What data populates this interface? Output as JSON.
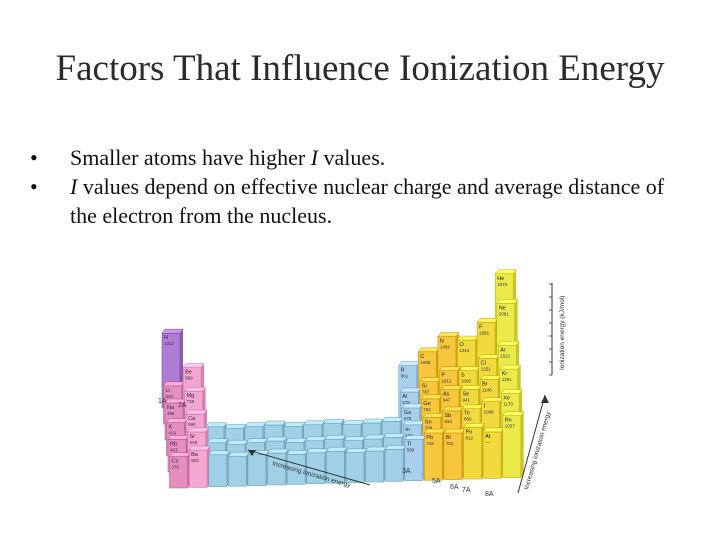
{
  "slide": {
    "title": "Factors That Influence Ionization Energy",
    "bullets": [
      {
        "prefix": "",
        "italic": "",
        "text": "Smaller atoms have higher ",
        "italic2": "I",
        "suffix": " values."
      },
      {
        "prefix": "",
        "italic": "I",
        "text": " values depend on effective nuclear charge and average distance of the electron from the nucleus.",
        "italic2": "",
        "suffix": ""
      }
    ]
  },
  "figure": {
    "axis_right_label": "Ionization energy (kJ/mol)",
    "arrow_bottom_label": "Increasing ionization energy",
    "arrow_right_label": "Increasing ionization energy",
    "group_labels": [
      "1A",
      "2A",
      "3A",
      "5A",
      "6A",
      "7A",
      "8A"
    ],
    "elements": [
      {
        "sym": "H",
        "val": "1312"
      },
      {
        "sym": "He",
        "val": "2372"
      },
      {
        "sym": "Li",
        "val": "520"
      },
      {
        "sym": "Be",
        "val": "899"
      },
      {
        "sym": "Na",
        "val": "496"
      },
      {
        "sym": "Mg",
        "val": "738"
      },
      {
        "sym": "K",
        "val": "419"
      },
      {
        "sym": "Ca",
        "val": "590"
      },
      {
        "sym": "Rb",
        "val": "403"
      },
      {
        "sym": "Sr",
        "val": "549"
      },
      {
        "sym": "Cs",
        "val": "376"
      },
      {
        "sym": "Ba",
        "val": "503"
      },
      {
        "sym": "B",
        "val": "801"
      },
      {
        "sym": "C",
        "val": "1086"
      },
      {
        "sym": "N",
        "val": "1402"
      },
      {
        "sym": "O",
        "val": "1314"
      },
      {
        "sym": "F",
        "val": "1681"
      },
      {
        "sym": "Ne",
        "val": "2081"
      },
      {
        "sym": "Al",
        "val": "578"
      },
      {
        "sym": "Si",
        "val": "787"
      },
      {
        "sym": "P",
        "val": "1012"
      },
      {
        "sym": "S",
        "val": "1000"
      },
      {
        "sym": "Cl",
        "val": "1251"
      },
      {
        "sym": "Ar",
        "val": "1521"
      },
      {
        "sym": "Ga",
        "val": "579"
      },
      {
        "sym": "Ge",
        "val": "762"
      },
      {
        "sym": "As",
        "val": "947"
      },
      {
        "sym": "Se",
        "val": "941"
      },
      {
        "sym": "Br",
        "val": "1140"
      },
      {
        "sym": "Kr",
        "val": "1351"
      },
      {
        "sym": "In",
        "val": "558"
      },
      {
        "sym": "Sn",
        "val": "709"
      },
      {
        "sym": "Sb",
        "val": "834"
      },
      {
        "sym": "Te",
        "val": "869"
      },
      {
        "sym": "I",
        "val": "1008"
      },
      {
        "sym": "Xe",
        "val": "1170"
      },
      {
        "sym": "Tl",
        "val": "589"
      },
      {
        "sym": "Pb",
        "val": "716"
      },
      {
        "sym": "Bi",
        "val": "703"
      },
      {
        "sym": "Po",
        "val": "812"
      },
      {
        "sym": "At",
        "val": "—"
      },
      {
        "sym": "Rn",
        "val": "1037"
      }
    ],
    "colors": {
      "alkali": "#e58fc0",
      "alkaline": "#f4a6d0",
      "hydrogen": "#b07bd3",
      "transition": "#9fd0e6",
      "p_block_low": "#a9cfee",
      "p_block_mid": "#f1d93e",
      "p_block_high": "#f7c63a",
      "noble": "#ece94a"
    }
  }
}
